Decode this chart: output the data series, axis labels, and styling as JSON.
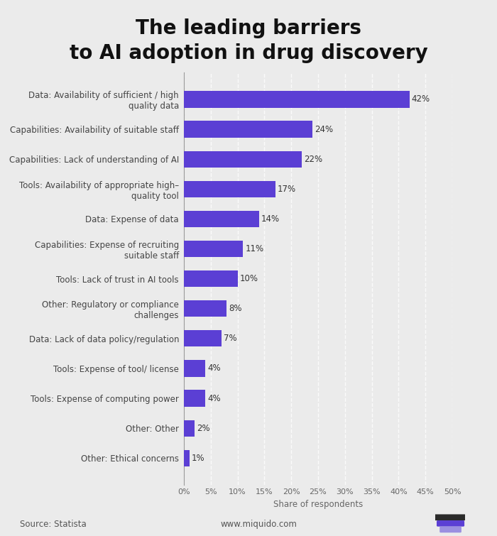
{
  "title": "The leading barriers\nto AI adoption in drug discovery",
  "categories": [
    "Data: Availability of sufficient / high\nquality data",
    "Capabilities: Availability of suitable staff",
    "Capabilities: Lack of understanding of AI",
    "Tools: Availability of appropriate high–\nquality tool",
    "Data: Expense of data",
    "Capabilities: Expense of recruiting\nsuitable staff",
    "Tools: Lack of trust in AI tools",
    "Other: Regulatory or compliance\nchallenges",
    "Data: Lack of data policy/regulation",
    "Tools: Expense of tool/ license",
    "Tools: Expense of computing power",
    "Other: Other",
    "Other: Ethical concerns"
  ],
  "values": [
    42,
    24,
    22,
    17,
    14,
    11,
    10,
    8,
    7,
    4,
    4,
    2,
    1
  ],
  "bar_color": "#5b3fd4",
  "background_color": "#ebebeb",
  "xlabel": "Share of respondents",
  "xlim": [
    0,
    50
  ],
  "xticks": [
    0,
    5,
    10,
    15,
    20,
    25,
    30,
    35,
    40,
    45,
    50
  ],
  "xticklabels": [
    "0%",
    "5%",
    "10%",
    "15%",
    "20%",
    "25%",
    "30%",
    "35%",
    "40%",
    "45%",
    "50%"
  ],
  "title_fontsize": 20,
  "label_fontsize": 8.5,
  "value_fontsize": 8.5,
  "xlabel_fontsize": 8.5,
  "xtick_fontsize": 8,
  "source_text": "Source: Statista",
  "website_text": "www.miquido.com",
  "footer_fontsize": 8.5,
  "bar_height": 0.55
}
